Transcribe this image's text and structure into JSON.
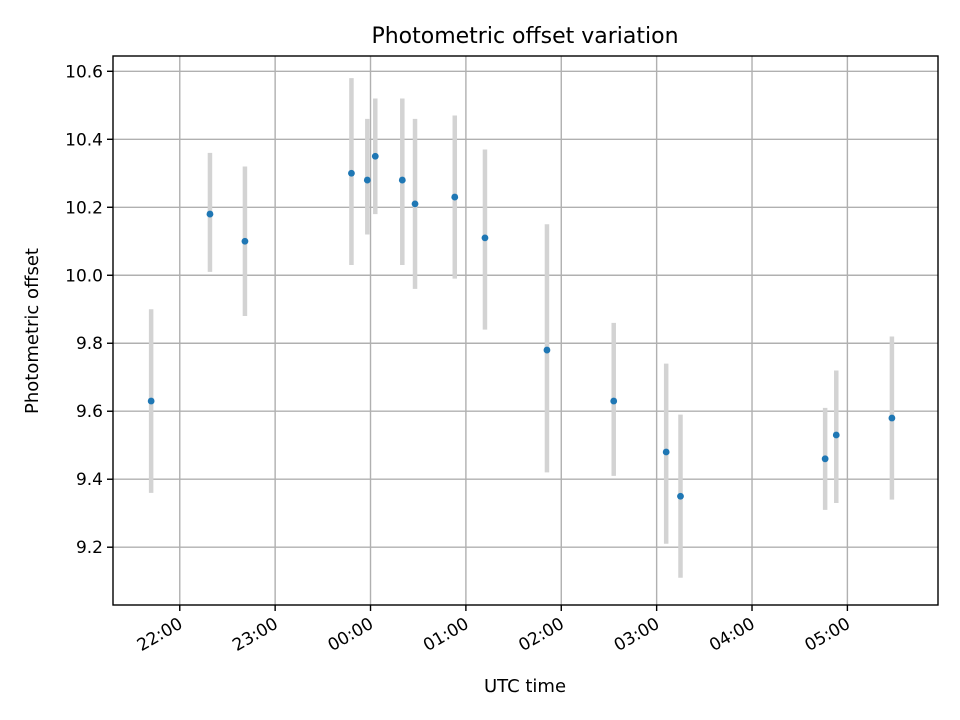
{
  "chart_data": {
    "type": "scatter",
    "title": "Photometric offset variation",
    "xlabel": "UTC time",
    "ylabel": "Photometric offset",
    "x_tick_labels": [
      "22:00",
      "23:00",
      "00:00",
      "01:00",
      "02:00",
      "03:00",
      "04:00",
      "05:00"
    ],
    "y_tick_labels": [
      "9.2",
      "9.4",
      "9.6",
      "9.8",
      "10.0",
      "10.2",
      "10.4",
      "10.6"
    ],
    "x": [
      "21:42",
      "22:19",
      "22:41",
      "23:48",
      "23:58",
      "00:03",
      "00:20",
      "00:28",
      "00:53",
      "01:12",
      "01:51",
      "02:33",
      "03:06",
      "03:15",
      "04:46",
      "04:53",
      "05:28"
    ],
    "y": [
      9.63,
      10.18,
      10.1,
      10.3,
      10.28,
      10.35,
      10.28,
      10.21,
      10.23,
      10.11,
      9.78,
      9.63,
      9.48,
      9.35,
      9.46,
      9.53,
      9.58
    ],
    "y_lower": [
      9.36,
      10.01,
      9.88,
      10.03,
      10.12,
      10.18,
      10.03,
      9.96,
      9.99,
      9.84,
      9.42,
      9.41,
      9.21,
      9.11,
      9.31,
      9.33,
      9.34
    ],
    "y_upper": [
      9.9,
      10.36,
      10.32,
      10.58,
      10.46,
      10.52,
      10.52,
      10.46,
      10.47,
      10.37,
      10.15,
      9.86,
      9.74,
      9.59,
      9.61,
      9.72,
      9.82
    ],
    "ylim": [
      9.03,
      10.645
    ],
    "xlim": [
      "21:18",
      "05:57"
    ],
    "grid": true,
    "colors": {
      "point": "#1f77b4",
      "errorbar": "#d3d3d3",
      "grid": "#b0b0b0"
    }
  }
}
